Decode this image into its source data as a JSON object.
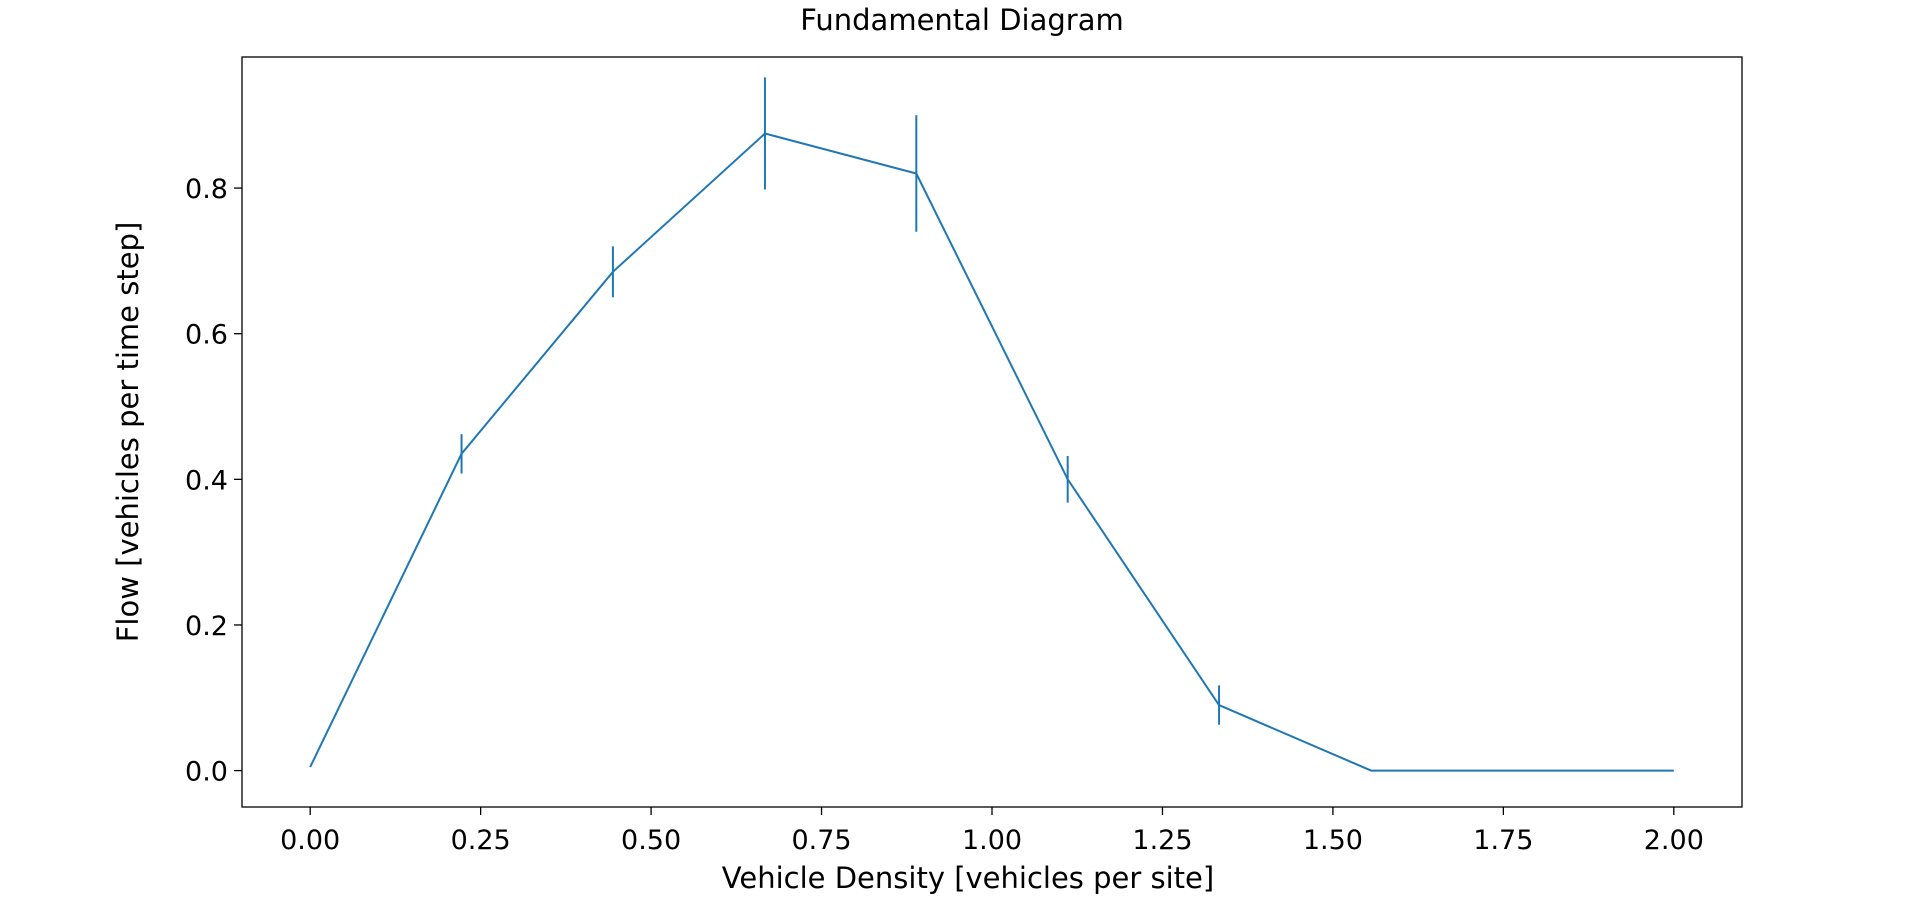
{
  "chart_data": {
    "type": "line",
    "title": "Fundamental Diagram",
    "xlabel": "Vehicle Density [vehicles per site]",
    "ylabel": "Flow [vehicles per time step]",
    "xlim": [
      -0.1,
      2.1
    ],
    "ylim": [
      -0.05,
      0.98
    ],
    "xticks": [
      0.0,
      0.25,
      0.5,
      0.75,
      1.0,
      1.25,
      1.5,
      1.75,
      2.0
    ],
    "xtick_labels": [
      "0.00",
      "0.25",
      "0.50",
      "0.75",
      "1.00",
      "1.25",
      "1.50",
      "1.75",
      "2.00"
    ],
    "yticks": [
      0.0,
      0.2,
      0.4,
      0.6,
      0.8
    ],
    "ytick_labels": [
      "0.0",
      "0.2",
      "0.4",
      "0.6",
      "0.8"
    ],
    "grid": false,
    "series": [
      {
        "color": "#1f77b4",
        "x": [
          0.0,
          0.222,
          0.444,
          0.667,
          0.889,
          1.111,
          1.333,
          1.556,
          2.0
        ],
        "y": [
          0.005,
          0.435,
          0.685,
          0.875,
          0.82,
          0.4,
          0.09,
          0.0,
          0.0
        ],
        "yerr": [
          0.0,
          0.027,
          0.035,
          0.077,
          0.08,
          0.032,
          0.027,
          0.0,
          0.0
        ]
      }
    ]
  }
}
